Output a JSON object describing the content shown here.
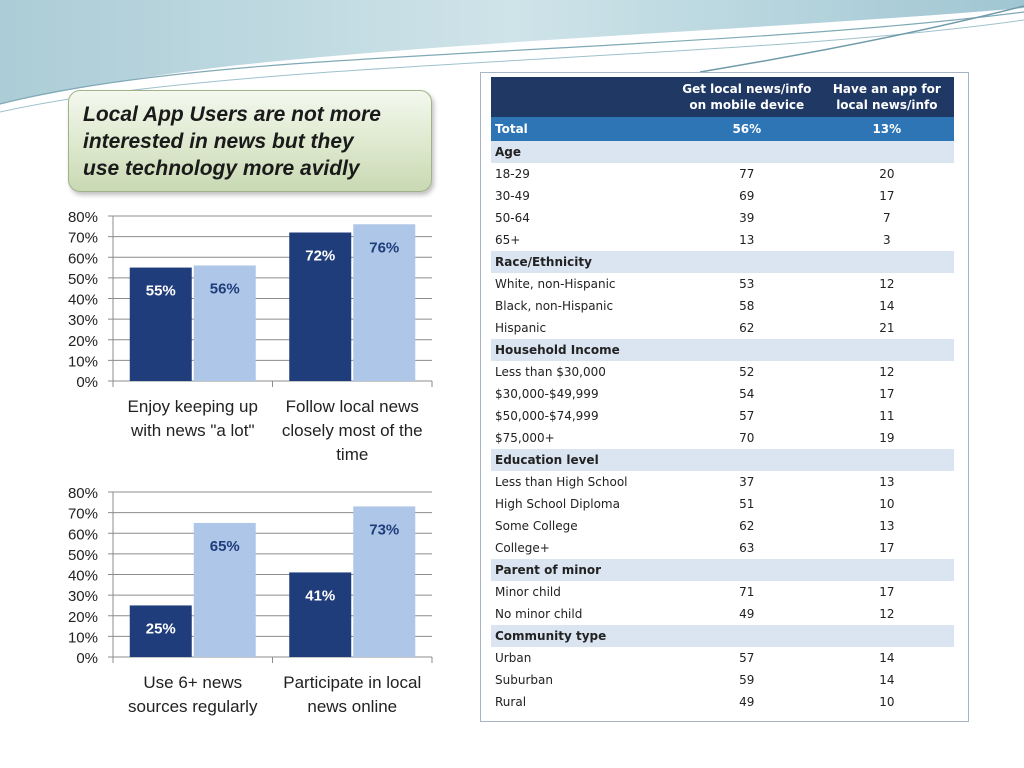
{
  "slide": {
    "callout_lines": [
      "Local App Users are not more",
      "interested in news but they",
      "use technology more avidly"
    ]
  },
  "colors": {
    "dark_bar": "#1f3d7a",
    "light_bar": "#aec6e8",
    "table_header": "#1f3864",
    "total_row": "#2e75b6",
    "section_row": "#dbe5f1"
  },
  "chart_data": [
    {
      "type": "bar",
      "categories": [
        [
          "Enjoy keeping up",
          "with news \"a lot\""
        ],
        [
          "Follow local news",
          "closely most of the",
          "time"
        ]
      ],
      "series": [
        {
          "values": [
            55,
            72
          ],
          "labels": [
            "55%",
            "72%"
          ]
        },
        {
          "values": [
            56,
            76
          ],
          "labels": [
            "56%",
            "76%"
          ]
        }
      ],
      "yticks": [
        "80%",
        "70%",
        "60%",
        "50%",
        "40%",
        "30%",
        "20%",
        "10%",
        "0%"
      ],
      "ylim": [
        0,
        80
      ],
      "grid": true
    },
    {
      "type": "bar",
      "categories": [
        [
          "Use 6+ news",
          "sources regularly"
        ],
        [
          "Participate in local",
          "news online"
        ]
      ],
      "series": [
        {
          "values": [
            25,
            41
          ],
          "labels": [
            "25%",
            "41%"
          ]
        },
        {
          "values": [
            65,
            73
          ],
          "labels": [
            "65%",
            "73%"
          ]
        }
      ],
      "yticks": [
        "80%",
        "70%",
        "60%",
        "50%",
        "40%",
        "30%",
        "20%",
        "10%",
        "0%"
      ],
      "ylim": [
        0,
        80
      ],
      "grid": true
    }
  ],
  "table": {
    "headers": [
      "",
      "Get local news/info on mobile device",
      "Have an app for local news/info"
    ],
    "rows": [
      {
        "kind": "total",
        "label": "Total",
        "v1": "56%",
        "v2": "13%"
      },
      {
        "kind": "section",
        "label": "Age"
      },
      {
        "kind": "data",
        "label": "18-29",
        "v1": "77",
        "v2": "20"
      },
      {
        "kind": "data",
        "label": "30-49",
        "v1": "69",
        "v2": "17"
      },
      {
        "kind": "data",
        "label": "50-64",
        "v1": "39",
        "v2": "7"
      },
      {
        "kind": "data",
        "label": "65+",
        "v1": "13",
        "v2": "3"
      },
      {
        "kind": "section",
        "label": "Race/Ethnicity"
      },
      {
        "kind": "data",
        "label": "White, non-Hispanic",
        "v1": "53",
        "v2": "12"
      },
      {
        "kind": "data",
        "label": "Black, non-Hispanic",
        "v1": "58",
        "v2": "14"
      },
      {
        "kind": "data",
        "label": "Hispanic",
        "v1": "62",
        "v2": "21"
      },
      {
        "kind": "section",
        "label": "Household Income"
      },
      {
        "kind": "data",
        "label": "Less than $30,000",
        "v1": "52",
        "v2": "12"
      },
      {
        "kind": "data",
        "label": "$30,000-$49,999",
        "v1": "54",
        "v2": "17"
      },
      {
        "kind": "data",
        "label": "$50,000-$74,999",
        "v1": "57",
        "v2": "11"
      },
      {
        "kind": "data",
        "label": "$75,000+",
        "v1": "70",
        "v2": "19"
      },
      {
        "kind": "section",
        "label": "Education level"
      },
      {
        "kind": "data",
        "label": "Less than High School",
        "v1": "37",
        "v2": "13"
      },
      {
        "kind": "data",
        "label": "High School Diploma",
        "v1": "51",
        "v2": "10"
      },
      {
        "kind": "data",
        "label": "Some College",
        "v1": "62",
        "v2": "13"
      },
      {
        "kind": "data",
        "label": "College+",
        "v1": "63",
        "v2": "17"
      },
      {
        "kind": "section",
        "label": "Parent of minor"
      },
      {
        "kind": "data",
        "label": "Minor child",
        "v1": "71",
        "v2": "17"
      },
      {
        "kind": "data",
        "label": "No minor child",
        "v1": "49",
        "v2": "12"
      },
      {
        "kind": "section",
        "label": "Community type"
      },
      {
        "kind": "data",
        "label": "Urban",
        "v1": "57",
        "v2": "14"
      },
      {
        "kind": "data",
        "label": "Suburban",
        "v1": "59",
        "v2": "14"
      },
      {
        "kind": "data",
        "label": "Rural",
        "v1": "49",
        "v2": "10"
      }
    ]
  }
}
